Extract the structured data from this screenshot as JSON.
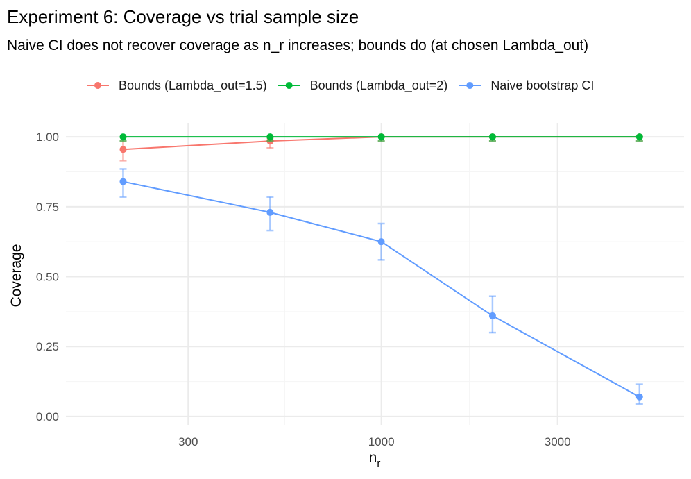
{
  "chart_data": {
    "type": "line",
    "title": "Experiment 6: Coverage vs trial sample size",
    "subtitle": "Naive CI does not recover coverage as n_r increases; bounds do (at chosen Lambda_out)",
    "xlabel_main": "n",
    "xlabel_sub": "r",
    "ylabel": "Coverage",
    "x_scale": "log10",
    "xlim": [
      140,
      6600
    ],
    "ylim": [
      -0.03,
      1.05
    ],
    "x_ticks": [
      300,
      1000,
      3000
    ],
    "x_tick_labels": [
      "300",
      "1000",
      "3000"
    ],
    "y_ticks": [
      0,
      0.25,
      0.5,
      0.75,
      1.0
    ],
    "y_tick_labels": [
      "0.00",
      "0.25",
      "0.50",
      "0.75",
      "1.00"
    ],
    "x": [
      200,
      500,
      1000,
      2000,
      5000
    ],
    "legend_position": "top",
    "series": [
      {
        "name": "Bounds (Lambda_out=1.5)",
        "color": "#F8766D",
        "values": [
          0.955,
          0.985,
          1.0,
          1.0,
          1.0
        ],
        "lower": [
          0.915,
          0.96,
          0.985,
          0.985,
          0.985
        ],
        "upper": [
          0.985,
          0.995,
          1.0,
          1.0,
          1.0
        ]
      },
      {
        "name": "Bounds (Lambda_out=2)",
        "color": "#00BA38",
        "values": [
          1.0,
          1.0,
          1.0,
          1.0,
          1.0
        ],
        "lower": [
          0.985,
          0.985,
          0.985,
          0.985,
          0.985
        ],
        "upper": [
          1.0,
          1.0,
          1.0,
          1.0,
          1.0
        ]
      },
      {
        "name": "Naive bootstrap CI",
        "color": "#619CFF",
        "values": [
          0.84,
          0.73,
          0.625,
          0.36,
          0.07
        ],
        "lower": [
          0.785,
          0.665,
          0.56,
          0.3,
          0.045
        ],
        "upper": [
          0.885,
          0.785,
          0.69,
          0.43,
          0.115
        ]
      }
    ]
  }
}
